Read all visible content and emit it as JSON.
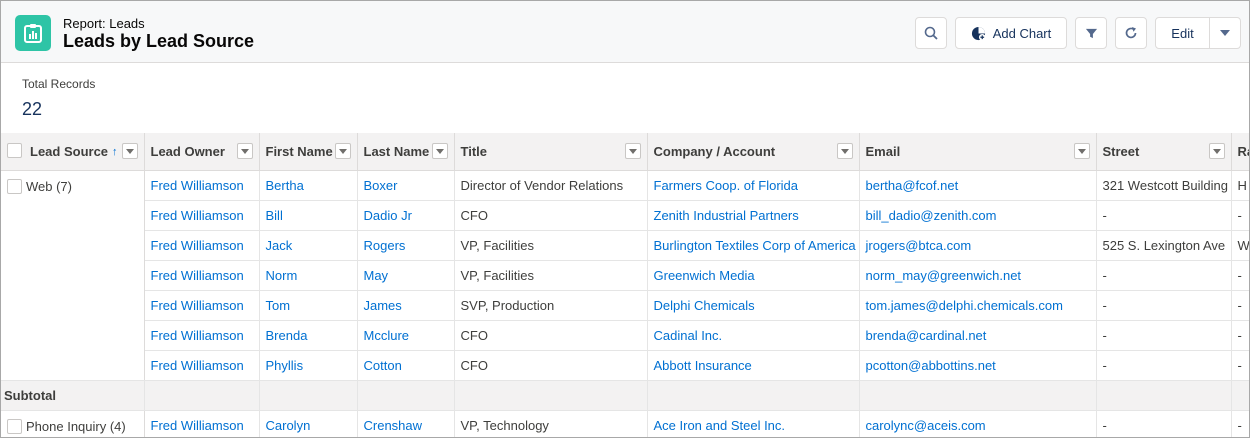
{
  "header": {
    "eyebrow": "Report: Leads",
    "title": "Leads by Lead Source",
    "add_chart_label": "Add Chart",
    "edit_label": "Edit"
  },
  "summary": {
    "label": "Total Records",
    "value": "22"
  },
  "table": {
    "columns": [
      "Lead Source",
      "Lead Owner",
      "First Name",
      "Last Name",
      "Title",
      "Company / Account",
      "Email",
      "Street",
      "Ra"
    ],
    "sort_indicator": "↑",
    "groups": [
      {
        "label": "Web (7)",
        "rows": [
          [
            "Fred Williamson",
            "Bertha",
            "Boxer",
            "Director of Vendor Relations",
            "Farmers Coop. of Florida",
            "bertha@fcof.net",
            "321 Westcott Building",
            "H"
          ],
          [
            "Fred Williamson",
            "Bill",
            "Dadio Jr",
            "CFO",
            "Zenith Industrial Partners",
            "bill_dadio@zenith.com",
            "-",
            "-"
          ],
          [
            "Fred Williamson",
            "Jack",
            "Rogers",
            "VP, Facilities",
            "Burlington Textiles Corp of America",
            "jrogers@btca.com",
            "525 S. Lexington Ave",
            "W"
          ],
          [
            "Fred Williamson",
            "Norm",
            "May",
            "VP, Facilities",
            "Greenwich Media",
            "norm_may@greenwich.net",
            "-",
            "-"
          ],
          [
            "Fred Williamson",
            "Tom",
            "James",
            "SVP, Production",
            "Delphi Chemicals",
            "tom.james@delphi.chemicals.com",
            "-",
            "-"
          ],
          [
            "Fred Williamson",
            "Brenda",
            "Mcclure",
            "CFO",
            "Cadinal Inc.",
            "brenda@cardinal.net",
            "-",
            "-"
          ],
          [
            "Fred Williamson",
            "Phyllis",
            "Cotton",
            "CFO",
            "Abbott Insurance",
            "pcotton@abbottins.net",
            "-",
            "-"
          ]
        ]
      },
      {
        "label": "Phone Inquiry (4)",
        "rows": [
          [
            "Fred Williamson",
            "Carolyn",
            "Crenshaw",
            "VP, Technology",
            "Ace Iron and Steel Inc.",
            "carolync@aceis.com",
            "-",
            "-"
          ]
        ]
      }
    ],
    "subtotal_label": "Subtotal"
  },
  "icons": [
    "report-icon",
    "search-icon",
    "add-chart-icon",
    "filter-icon",
    "refresh-icon",
    "chevron-down-icon"
  ],
  "colors": {
    "report_icon_bg": "#2ec4a6",
    "link": "#0070d2"
  }
}
